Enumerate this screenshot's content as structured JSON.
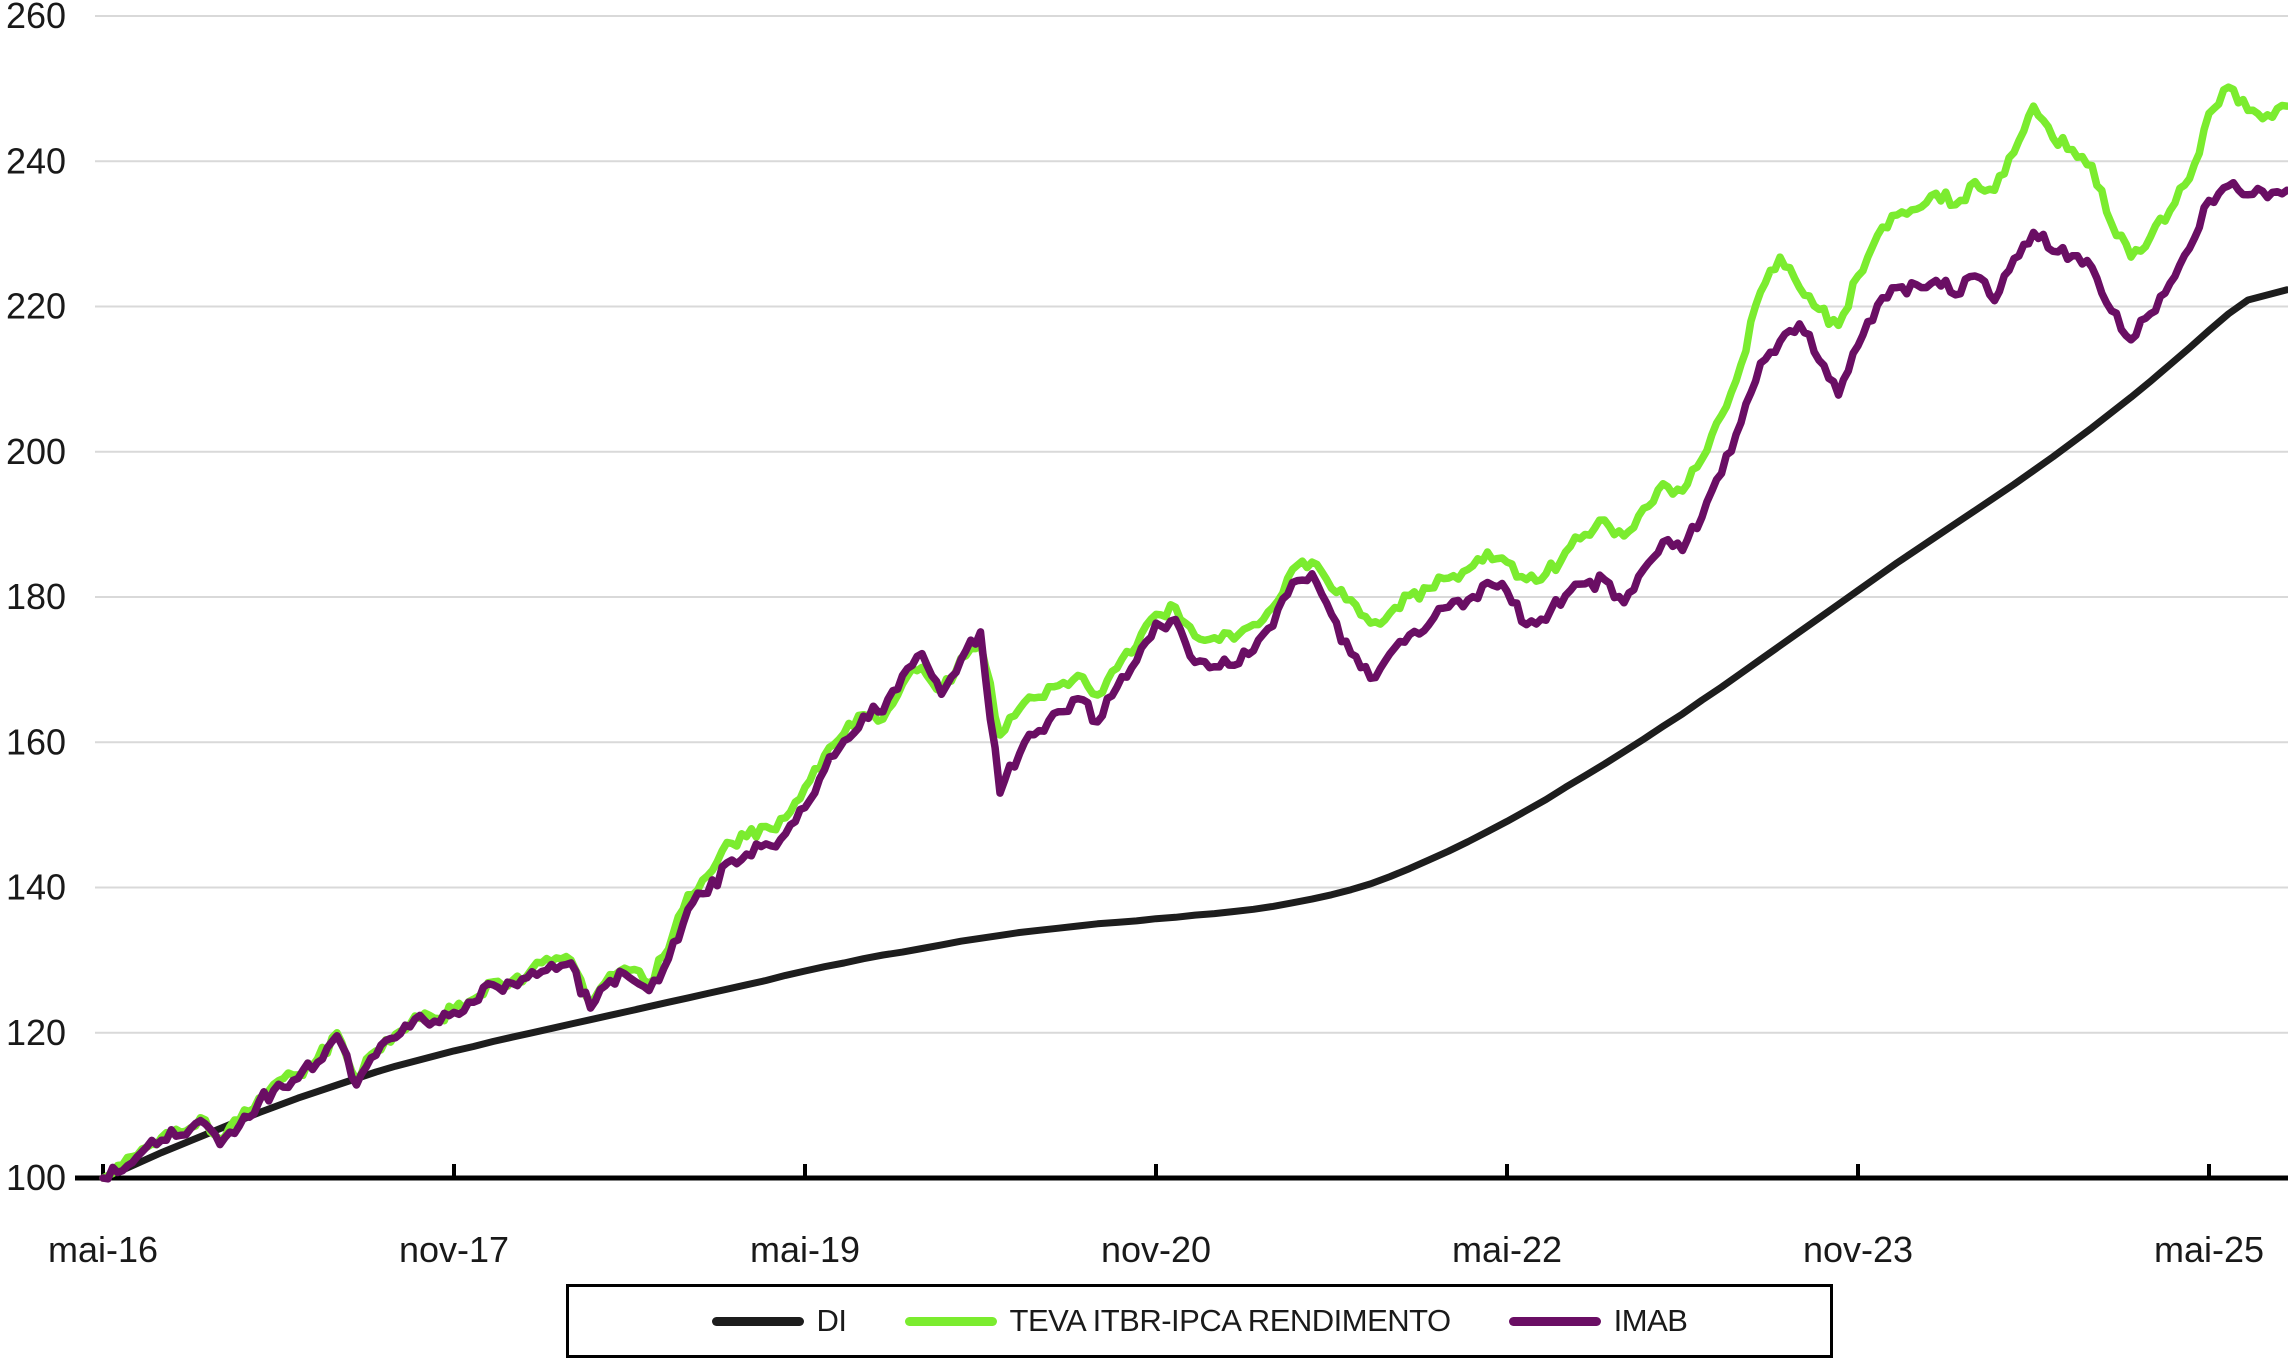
{
  "chart_data": {
    "type": "line",
    "title": "",
    "x_tick_labels": [
      "mai-16",
      "nov-17",
      "mai-19",
      "nov-20",
      "mai-22",
      "nov-23",
      "mai-25"
    ],
    "x_tick_month_indices": [
      0,
      18,
      36,
      54,
      72,
      90,
      108
    ],
    "x_start": "mai-16",
    "x_end": "set-25",
    "months_per_point": 1,
    "n_points": 113,
    "y_ticks": [
      100,
      120,
      140,
      160,
      180,
      200,
      220,
      240,
      260
    ],
    "ylim": [
      100,
      260
    ],
    "grid": "horizontal",
    "gridline_color": "#d9d9d9",
    "axis_color": "#000000",
    "tick_label_color": "#191919",
    "legend_position": "bottom-center",
    "series": [
      {
        "name": "DI",
        "color": "#1d1d1d",
        "values": [
          100.0,
          101.1,
          102.3,
          103.5,
          104.6,
          105.7,
          106.8,
          107.9,
          109.0,
          110.0,
          111.0,
          111.9,
          112.8,
          113.7,
          114.6,
          115.4,
          116.1,
          116.8,
          117.5,
          118.1,
          118.8,
          119.4,
          120.0,
          120.6,
          121.2,
          121.8,
          122.4,
          123.0,
          123.6,
          124.2,
          124.8,
          125.4,
          126.0,
          126.6,
          127.2,
          127.9,
          128.5,
          129.1,
          129.6,
          130.2,
          130.7,
          131.1,
          131.6,
          132.1,
          132.6,
          133.0,
          133.4,
          133.8,
          134.1,
          134.4,
          134.7,
          135.0,
          135.2,
          135.4,
          135.7,
          135.9,
          136.2,
          136.4,
          136.7,
          137.0,
          137.4,
          137.9,
          138.4,
          139.0,
          139.7,
          140.5,
          141.5,
          142.6,
          143.8,
          145.0,
          146.3,
          147.7,
          149.1,
          150.6,
          152.1,
          153.8,
          155.4,
          157.0,
          158.7,
          160.4,
          162.2,
          163.9,
          165.8,
          167.6,
          169.5,
          171.4,
          173.3,
          175.2,
          177.1,
          179.0,
          180.9,
          182.8,
          184.7,
          186.5,
          188.3,
          190.1,
          191.9,
          193.7,
          195.5,
          197.4,
          199.3,
          201.3,
          203.3,
          205.4,
          207.5,
          209.7,
          212.0,
          214.3,
          216.7,
          219.0,
          220.9,
          221.6,
          222.3
        ]
      },
      {
        "name": "TEVA ITBR-IPCA RENDIMENTO",
        "color": "#7bec2f",
        "values": [
          100.0,
          101.8,
          104.0,
          105.6,
          106.3,
          108.3,
          105.3,
          108.0,
          111.0,
          113.4,
          114.2,
          116.4,
          120.0,
          113.5,
          117.5,
          119.8,
          122.3,
          122.0,
          123.2,
          124.6,
          127.0,
          127.2,
          128.8,
          129.8,
          130.0,
          124.0,
          128.0,
          128.6,
          126.8,
          131.5,
          139.0,
          141.6,
          146.2,
          147.0,
          148.4,
          149.6,
          153.8,
          158.2,
          161.2,
          163.8,
          163.2,
          168.0,
          170.3,
          167.0,
          171.6,
          173.6,
          161.0,
          164.6,
          166.2,
          167.8,
          169.2,
          166.5,
          170.2,
          173.2,
          177.6,
          178.6,
          174.6,
          174.4,
          174.2,
          176.2,
          178.6,
          183.8,
          184.8,
          181.2,
          179.6,
          176.4,
          177.8,
          180.2,
          181.2,
          182.6,
          183.8,
          186.2,
          184.8,
          182.4,
          183.2,
          186.2,
          188.6,
          190.6,
          188.4,
          192.2,
          195.6,
          194.6,
          199.0,
          205.0,
          212.0,
          222.0,
          226.8,
          222.6,
          219.6,
          217.4,
          224.2,
          229.8,
          232.6,
          233.4,
          235.6,
          234.0,
          237.2,
          236.0,
          241.2,
          247.6,
          243.2,
          241.6,
          239.4,
          231.4,
          226.8,
          229.6,
          233.2,
          237.6,
          246.6,
          250.2,
          247.0,
          246.4,
          247.6
        ]
      },
      {
        "name": "IMAB",
        "color": "#6a0e64",
        "values": [
          100.0,
          101.0,
          103.6,
          105.2,
          105.9,
          107.9,
          104.6,
          107.2,
          110.5,
          112.9,
          113.7,
          115.9,
          119.6,
          112.8,
          116.9,
          119.3,
          121.9,
          121.6,
          122.8,
          124.2,
          126.6,
          126.8,
          128.4,
          129.4,
          129.6,
          123.4,
          127.2,
          127.6,
          125.8,
          130.2,
          137.0,
          139.2,
          143.4,
          144.6,
          146.0,
          147.4,
          151.0,
          156.2,
          160.2,
          163.6,
          164.2,
          169.2,
          172.2,
          166.6,
          171.4,
          175.2,
          153.0,
          158.4,
          161.6,
          164.2,
          166.0,
          162.8,
          167.6,
          171.2,
          176.4,
          176.9,
          171.0,
          170.4,
          170.6,
          172.6,
          176.0,
          182.0,
          183.2,
          177.6,
          172.2,
          168.8,
          172.2,
          174.8,
          176.2,
          178.6,
          179.6,
          182.0,
          180.8,
          176.2,
          176.8,
          180.2,
          181.8,
          182.4,
          179.2,
          183.8,
          187.6,
          186.4,
          191.0,
          197.0,
          204.0,
          212.2,
          215.2,
          217.6,
          212.6,
          207.8,
          214.6,
          220.2,
          222.6,
          223.0,
          223.6,
          221.6,
          224.2,
          220.8,
          226.6,
          230.2,
          227.6,
          227.0,
          225.4,
          219.4,
          215.4,
          219.0,
          223.2,
          228.0,
          234.6,
          236.6,
          235.4,
          235.0,
          236.0
        ]
      }
    ]
  },
  "legend": {
    "items": [
      {
        "label": "DI",
        "color": "#1d1d1d"
      },
      {
        "label": "TEVA ITBR-IPCA RENDIMENTO",
        "color": "#7bec2f"
      },
      {
        "label": "IMAB",
        "color": "#6a0e64"
      }
    ]
  }
}
